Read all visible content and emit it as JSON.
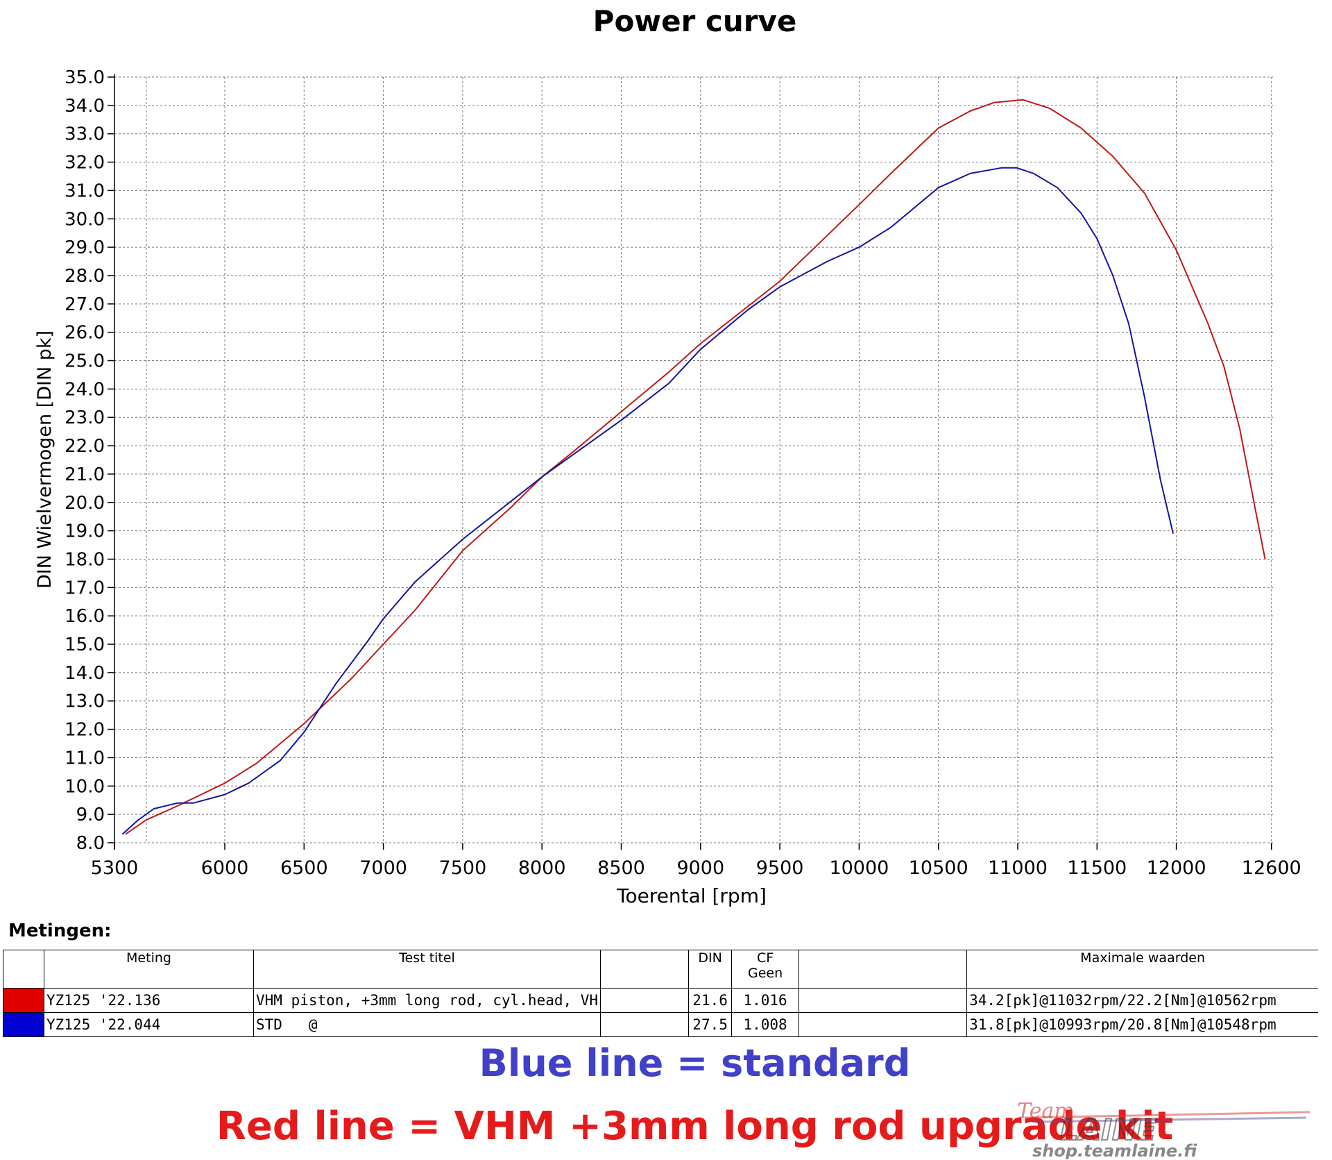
{
  "chart_data": {
    "type": "line",
    "title": "Power curve",
    "xlabel": "Toerental [rpm]",
    "ylabel": "DIN Wielvermogen [DIN pk]",
    "xlim": [
      5300,
      12600
    ],
    "ylim": [
      8.0,
      35.0
    ],
    "x_ticks": [
      "5300",
      "6000",
      "6500",
      "7000",
      "7500",
      "8000",
      "8500",
      "9000",
      "9500",
      "10000",
      "10500",
      "11000",
      "11500",
      "12000",
      "12600"
    ],
    "x_tick_values": [
      5300,
      6000,
      6500,
      7000,
      7500,
      8000,
      8500,
      9000,
      9500,
      10000,
      10500,
      11000,
      11500,
      12000,
      12600
    ],
    "y_ticks": [
      "8.0",
      "9.0",
      "10.0",
      "11.0",
      "12.0",
      "13.0",
      "14.0",
      "15.0",
      "16.0",
      "17.0",
      "18.0",
      "19.0",
      "20.0",
      "21.0",
      "22.0",
      "23.0",
      "24.0",
      "25.0",
      "26.0",
      "27.0",
      "28.0",
      "29.0",
      "30.0",
      "31.0",
      "32.0",
      "33.0",
      "34.0",
      "35.0"
    ],
    "grid": true,
    "series": [
      {
        "name": "YZ125 '22.136",
        "color": "#c01818",
        "points": [
          [
            5370,
            8.3
          ],
          [
            5500,
            8.8
          ],
          [
            5700,
            9.3
          ],
          [
            6000,
            10.1
          ],
          [
            6200,
            10.8
          ],
          [
            6500,
            12.2
          ],
          [
            6800,
            13.8
          ],
          [
            7000,
            15.0
          ],
          [
            7200,
            16.2
          ],
          [
            7500,
            18.3
          ],
          [
            7800,
            19.8
          ],
          [
            8000,
            20.9
          ],
          [
            8200,
            21.8
          ],
          [
            8500,
            23.2
          ],
          [
            8800,
            24.6
          ],
          [
            9000,
            25.6
          ],
          [
            9500,
            27.8
          ],
          [
            10000,
            30.5
          ],
          [
            10200,
            31.6
          ],
          [
            10500,
            33.2
          ],
          [
            10700,
            33.8
          ],
          [
            10850,
            34.1
          ],
          [
            11032,
            34.2
          ],
          [
            11200,
            33.9
          ],
          [
            11400,
            33.2
          ],
          [
            11600,
            32.2
          ],
          [
            11800,
            30.9
          ],
          [
            12000,
            28.9
          ],
          [
            12200,
            26.3
          ],
          [
            12300,
            24.8
          ],
          [
            12400,
            22.6
          ],
          [
            12500,
            19.7
          ],
          [
            12560,
            18.0
          ]
        ]
      },
      {
        "name": "YZ125 '22.044",
        "color": "#1515a0",
        "points": [
          [
            5350,
            8.3
          ],
          [
            5450,
            8.8
          ],
          [
            5550,
            9.2
          ],
          [
            5700,
            9.4
          ],
          [
            5800,
            9.4
          ],
          [
            6000,
            9.7
          ],
          [
            6150,
            10.1
          ],
          [
            6350,
            10.9
          ],
          [
            6500,
            11.9
          ],
          [
            6700,
            13.6
          ],
          [
            6900,
            15.1
          ],
          [
            7000,
            15.9
          ],
          [
            7200,
            17.2
          ],
          [
            7500,
            18.7
          ],
          [
            8000,
            20.9
          ],
          [
            8500,
            22.9
          ],
          [
            8800,
            24.2
          ],
          [
            9000,
            25.4
          ],
          [
            9300,
            26.8
          ],
          [
            9500,
            27.6
          ],
          [
            9800,
            28.5
          ],
          [
            10000,
            29.0
          ],
          [
            10200,
            29.7
          ],
          [
            10500,
            31.1
          ],
          [
            10700,
            31.6
          ],
          [
            10900,
            31.8
          ],
          [
            10993,
            31.8
          ],
          [
            11100,
            31.6
          ],
          [
            11250,
            31.1
          ],
          [
            11400,
            30.2
          ],
          [
            11500,
            29.3
          ],
          [
            11600,
            28.0
          ],
          [
            11700,
            26.3
          ],
          [
            11800,
            23.7
          ],
          [
            11900,
            20.8
          ],
          [
            11980,
            18.9
          ]
        ]
      }
    ]
  },
  "measurements": {
    "title": "Metingen:",
    "headers": {
      "meting": "Meting",
      "test_titel": "Test titel",
      "din": "DIN",
      "cf_line1": "CF",
      "cf_line2": "Geen",
      "max": "Maximale waarden"
    },
    "rows": [
      {
        "color": "#e00000",
        "meting": "YZ125 '22.136",
        "test_titel": "VHM piston, +3mm long rod, cyl.head, VH",
        "din": "21.6",
        "cf": "1.016",
        "max": "34.2[pk]@11032rpm/22.2[Nm]@10562rpm"
      },
      {
        "color": "#0000d0",
        "meting": "YZ125 '22.044",
        "test_titel": "STD   @",
        "din": "27.5",
        "cf": "1.008",
        "max": "31.8[pk]@10993rpm/20.8[Nm]@10548rpm"
      }
    ]
  },
  "captions": {
    "blue": "Blue line = standard",
    "red": "Red line = VHM +3mm long rod upgrade kit"
  },
  "logo": {
    "script": "Team",
    "brand": "LAINE",
    "url": "shop.teamlaine.fi"
  }
}
